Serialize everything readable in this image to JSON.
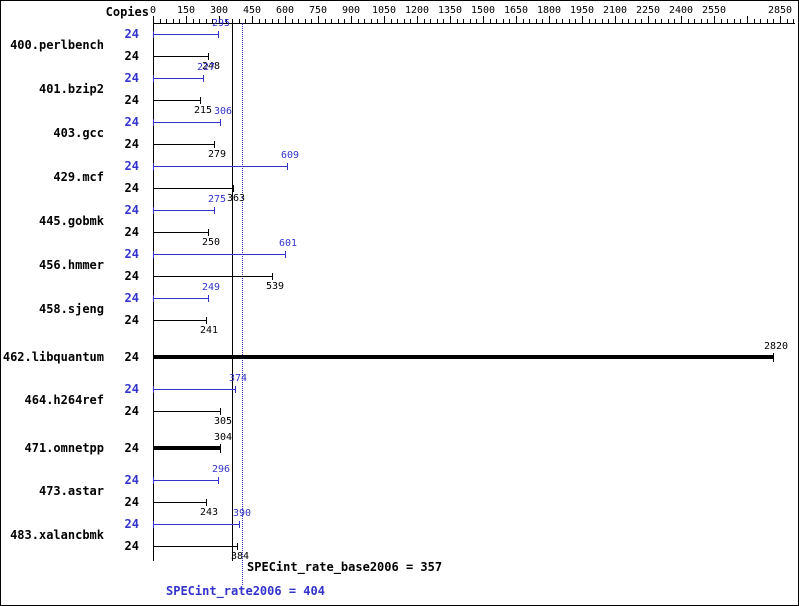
{
  "chart_data": {
    "type": "bar",
    "orientation": "horizontal",
    "copies_header": "Copies",
    "axis": {
      "min": 0,
      "max": 2910,
      "major_step": 150,
      "minor_step": 30,
      "position": "top",
      "grid": false,
      "tick_labels": [
        0,
        150,
        300,
        450,
        600,
        750,
        900,
        1050,
        1200,
        1350,
        1500,
        1650,
        1800,
        1950,
        2100,
        2250,
        2400,
        2550,
        2850
      ]
    },
    "colors": {
      "peak": "#3333cc",
      "base": "#000000"
    },
    "series_names": [
      "peak",
      "base"
    ],
    "benchmarks": [
      {
        "name": "400.perlbench",
        "copies": 24,
        "peak": 295,
        "base": 248,
        "base_equals_peak": false
      },
      {
        "name": "401.bzip2",
        "copies": 24,
        "peak": 227,
        "base": 215,
        "base_equals_peak": false
      },
      {
        "name": "403.gcc",
        "copies": 24,
        "peak": 306,
        "base": 279,
        "base_equals_peak": false
      },
      {
        "name": "429.mcf",
        "copies": 24,
        "peak": 609,
        "base": 363,
        "base_equals_peak": false
      },
      {
        "name": "445.gobmk",
        "copies": 24,
        "peak": 275,
        "base": 250,
        "base_equals_peak": false
      },
      {
        "name": "456.hmmer",
        "copies": 24,
        "peak": 601,
        "base": 539,
        "base_equals_peak": false
      },
      {
        "name": "458.sjeng",
        "copies": 24,
        "peak": 249,
        "base": 241,
        "base_equals_peak": false
      },
      {
        "name": "462.libquantum",
        "copies": 24,
        "peak": 2820,
        "base": 2820,
        "base_equals_peak": true
      },
      {
        "name": "464.h264ref",
        "copies": 24,
        "peak": 374,
        "base": 305,
        "base_equals_peak": false
      },
      {
        "name": "471.omnetpp",
        "copies": 24,
        "peak": 304,
        "base": 304,
        "base_equals_peak": true
      },
      {
        "name": "473.astar",
        "copies": 24,
        "peak": 296,
        "base": 243,
        "base_equals_peak": false
      },
      {
        "name": "483.xalancbmk",
        "copies": 24,
        "peak": 390,
        "base": 384,
        "base_equals_peak": false
      }
    ],
    "reference_lines": [
      {
        "value": 357,
        "style": "solid",
        "color": "#000000",
        "label": "SPECint_rate_base2006 = 357"
      },
      {
        "value": 404,
        "style": "dotted",
        "color": "#3333cc",
        "label": "SPECint_rate2006 = 404"
      }
    ]
  }
}
